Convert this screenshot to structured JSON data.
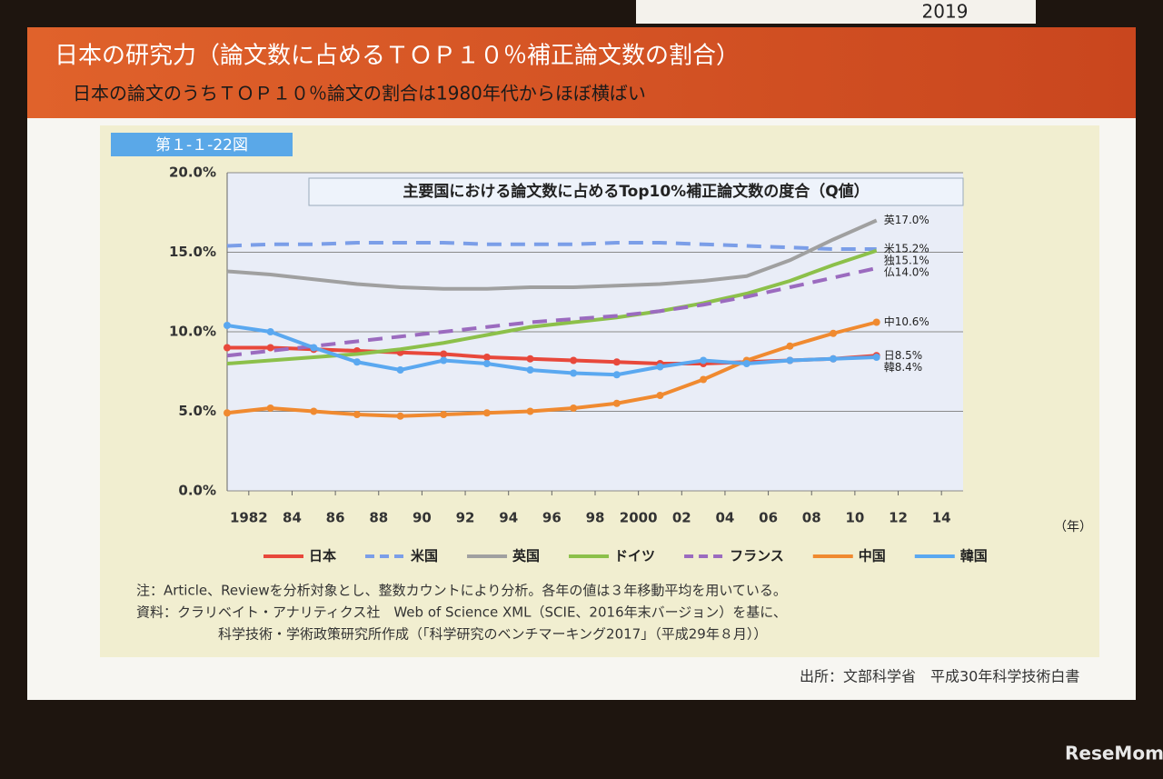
{
  "header": {
    "banner": "2019",
    "title": "日本の研究力（論文数に占めるＴＯＰ１０％補正論文数の割合）",
    "subtitle": "日本の論文のうちＴＯＰ１０％論文の割合は1980年代からほぼ横ばい",
    "figure_tag": "第１-１-22図"
  },
  "chart_data": {
    "type": "line",
    "title": "主要国における論文数に占めるTop10%補正論文数の度合（Q値）",
    "x_unit": "（年）",
    "x": [
      1981,
      1983,
      1985,
      1987,
      1989,
      1991,
      1993,
      1995,
      1997,
      1999,
      2001,
      2003,
      2005,
      2007,
      2009,
      2011
    ],
    "xlim": [
      1981,
      2015
    ],
    "xticks": [
      1982,
      {
        "value": 1984,
        "label": "84"
      },
      {
        "value": 1986,
        "label": "86"
      },
      {
        "value": 1988,
        "label": "88"
      },
      {
        "value": 1990,
        "label": "90"
      },
      {
        "value": 1992,
        "label": "92"
      },
      {
        "value": 1994,
        "label": "94"
      },
      {
        "value": 1996,
        "label": "96"
      },
      {
        "value": 1998,
        "label": "98"
      },
      2000,
      {
        "value": 2002,
        "label": "02"
      },
      {
        "value": 2004,
        "label": "04"
      },
      {
        "value": 2006,
        "label": "06"
      },
      {
        "value": 2008,
        "label": "08"
      },
      {
        "value": 2010,
        "label": "10"
      },
      {
        "value": 2012,
        "label": "12"
      },
      {
        "value": 2014,
        "label": "14"
      }
    ],
    "ylim": [
      0,
      20
    ],
    "yticks": [
      {
        "value": 0,
        "label": "0.0%"
      },
      {
        "value": 5,
        "label": "5.0%"
      },
      {
        "value": 10,
        "label": "10.0%"
      },
      {
        "value": 15,
        "label": "15.0%"
      },
      {
        "value": 20,
        "label": "20.0%"
      }
    ],
    "grid": true,
    "series": [
      {
        "name": "日本",
        "color": "#e8483b",
        "dash": false,
        "marker": true,
        "values": [
          9.0,
          9.0,
          8.9,
          8.8,
          8.7,
          8.6,
          8.4,
          8.3,
          8.2,
          8.1,
          8.0,
          8.0,
          8.1,
          8.2,
          8.3,
          8.5
        ],
        "value_labels": [
          null,
          null,
          null,
          null,
          null,
          null,
          null,
          null,
          null,
          null,
          null,
          null,
          null,
          null,
          null,
          "日8.5%"
        ]
      },
      {
        "name": "米国",
        "color": "#7b9ee8",
        "dash": true,
        "marker": false,
        "values": [
          15.4,
          15.5,
          15.5,
          15.6,
          15.6,
          15.6,
          15.5,
          15.5,
          15.5,
          15.6,
          15.6,
          15.5,
          15.4,
          15.3,
          15.2,
          15.2
        ],
        "value_labels": [
          null,
          null,
          null,
          null,
          null,
          null,
          null,
          null,
          null,
          null,
          null,
          null,
          null,
          null,
          null,
          "米15.2%"
        ]
      },
      {
        "name": "英国",
        "color": "#a0a0a0",
        "dash": false,
        "marker": false,
        "values": [
          13.8,
          13.6,
          13.3,
          13.0,
          12.8,
          12.7,
          12.7,
          12.8,
          12.8,
          12.9,
          13.0,
          13.2,
          13.5,
          14.5,
          15.8,
          17.0
        ],
        "value_labels": [
          null,
          null,
          null,
          null,
          null,
          null,
          null,
          null,
          null,
          null,
          null,
          null,
          null,
          null,
          null,
          "英17.0%"
        ]
      },
      {
        "name": "ドイツ",
        "color": "#8cc04a",
        "dash": false,
        "marker": false,
        "values": [
          8.0,
          8.2,
          8.4,
          8.6,
          8.9,
          9.3,
          9.8,
          10.3,
          10.6,
          10.9,
          11.3,
          11.8,
          12.4,
          13.2,
          14.2,
          15.1
        ],
        "value_labels": [
          null,
          null,
          null,
          null,
          null,
          null,
          null,
          null,
          null,
          null,
          null,
          null,
          null,
          null,
          null,
          "独15.1%"
        ]
      },
      {
        "name": "フランス",
        "color": "#9b6bbf",
        "dash": true,
        "marker": false,
        "values": [
          8.5,
          8.8,
          9.1,
          9.4,
          9.7,
          10.0,
          10.3,
          10.6,
          10.8,
          11.0,
          11.3,
          11.7,
          12.2,
          12.8,
          13.4,
          14.0
        ],
        "value_labels": [
          null,
          null,
          null,
          null,
          null,
          null,
          null,
          null,
          null,
          null,
          null,
          null,
          null,
          null,
          null,
          "仏14.0%"
        ]
      },
      {
        "name": "中国",
        "color": "#f08a30",
        "dash": false,
        "marker": true,
        "values": [
          4.9,
          5.2,
          5.0,
          4.8,
          4.7,
          4.8,
          4.9,
          5.0,
          5.2,
          5.5,
          6.0,
          7.0,
          8.2,
          9.1,
          9.9,
          10.6
        ],
        "value_labels": [
          null,
          null,
          null,
          null,
          null,
          null,
          null,
          null,
          null,
          null,
          null,
          null,
          null,
          null,
          null,
          "中10.6%"
        ]
      },
      {
        "name": "韓国",
        "color": "#5aa8f0",
        "dash": false,
        "marker": true,
        "values": [
          10.4,
          10.0,
          9.0,
          8.1,
          7.6,
          8.2,
          8.0,
          7.6,
          7.4,
          7.3,
          7.8,
          8.2,
          8.0,
          8.2,
          8.3,
          8.4
        ],
        "value_labels": [
          null,
          null,
          null,
          null,
          null,
          null,
          null,
          null,
          null,
          null,
          null,
          null,
          null,
          null,
          null,
          "韓8.4%"
        ]
      }
    ]
  },
  "notes": [
    "注：Article、Reviewを分析対象とし、整数カウントにより分析。各年の値は３年移動平均を用いている。",
    "資料：クラリベイト・アナリティクス社　Web of Science XML（SCIE、2016年末バージョン）を基に、",
    "科学技術・学術政策研究所作成（「科学研究のベンチマーキング2017」（平成29年８月））"
  ],
  "footer": {
    "source": "出所：文部科学省　平成30年科学技術白書",
    "watermark": "ReseMom"
  }
}
